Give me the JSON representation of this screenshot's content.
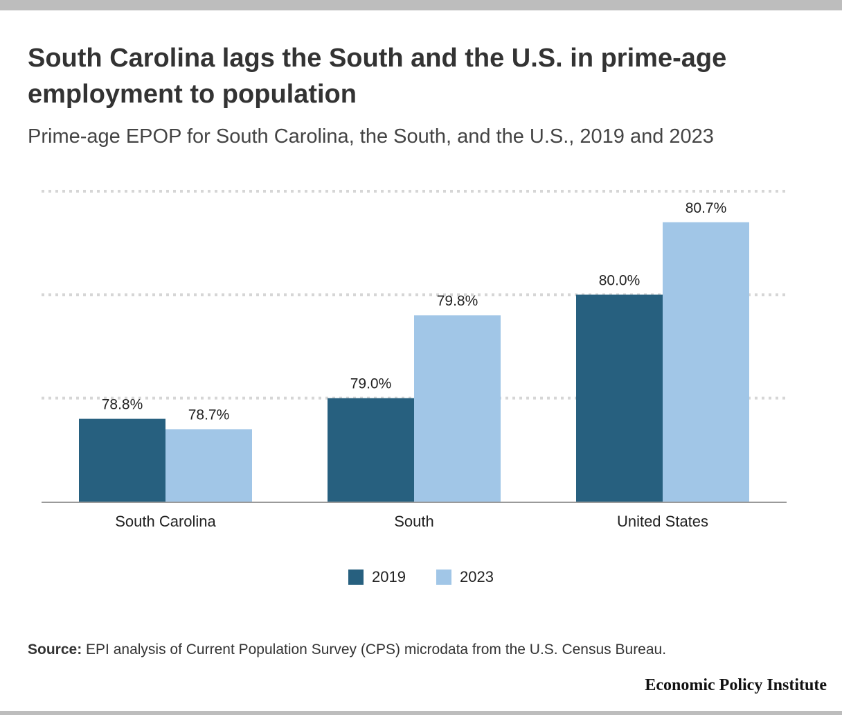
{
  "header": {
    "title": "South Carolina lags the South and the U.S. in prime-age employment to population",
    "subtitle": "Prime-age EPOP for South Carolina, the South, and the U.S., 2019 and 2023"
  },
  "footer": {
    "source_label": "Source:",
    "source_text": " EPI analysis of Current Population Survey (CPS) microdata from the U.S. Census Bureau.",
    "brand": "Economic Policy Institute"
  },
  "colors": {
    "series_2019": "#27607f",
    "series_2023": "#a1c6e7",
    "grid": "#d6d6d6",
    "axis": "#9a9a9a"
  },
  "chart_data": {
    "type": "bar",
    "categories": [
      "South Carolina",
      "South",
      "United States"
    ],
    "series": [
      {
        "name": "2019",
        "values": [
          78.8,
          79.0,
          80.0
        ],
        "labels": [
          "78.8%",
          "79.0%",
          "80.0%"
        ]
      },
      {
        "name": "2023",
        "values": [
          78.7,
          79.8,
          80.7
        ],
        "labels": [
          "78.7%",
          "79.8%",
          "80.7%"
        ]
      }
    ],
    "ylim": [
      78.0,
      81.0
    ],
    "gridlines": [
      79.0,
      80.0,
      81.0
    ],
    "grid": true,
    "legend_position": "bottom-center"
  }
}
